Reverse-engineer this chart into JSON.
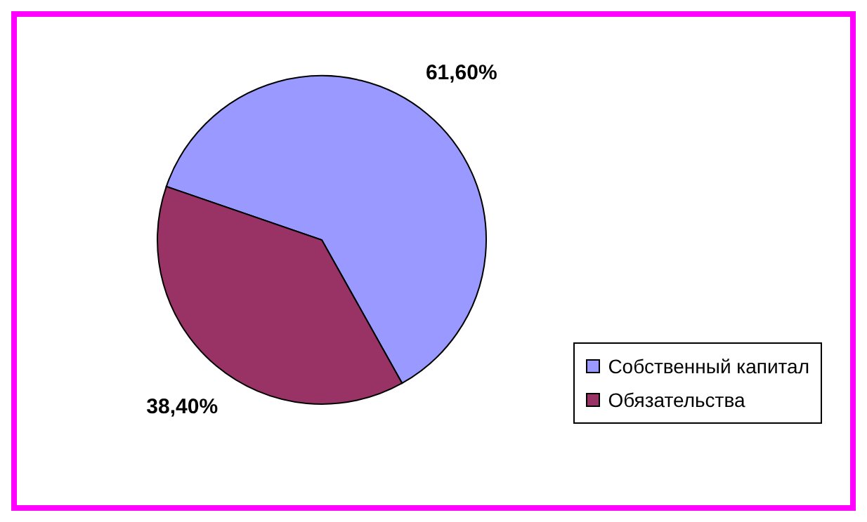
{
  "chart_data": {
    "type": "pie",
    "categories": [
      "Собственный капитал",
      "Обязательства"
    ],
    "values": [
      61.6,
      38.4
    ],
    "colors": [
      "#9999ff",
      "#993366"
    ],
    "value_labels": [
      "61,60%",
      "38,40%"
    ],
    "legend": "right"
  }
}
